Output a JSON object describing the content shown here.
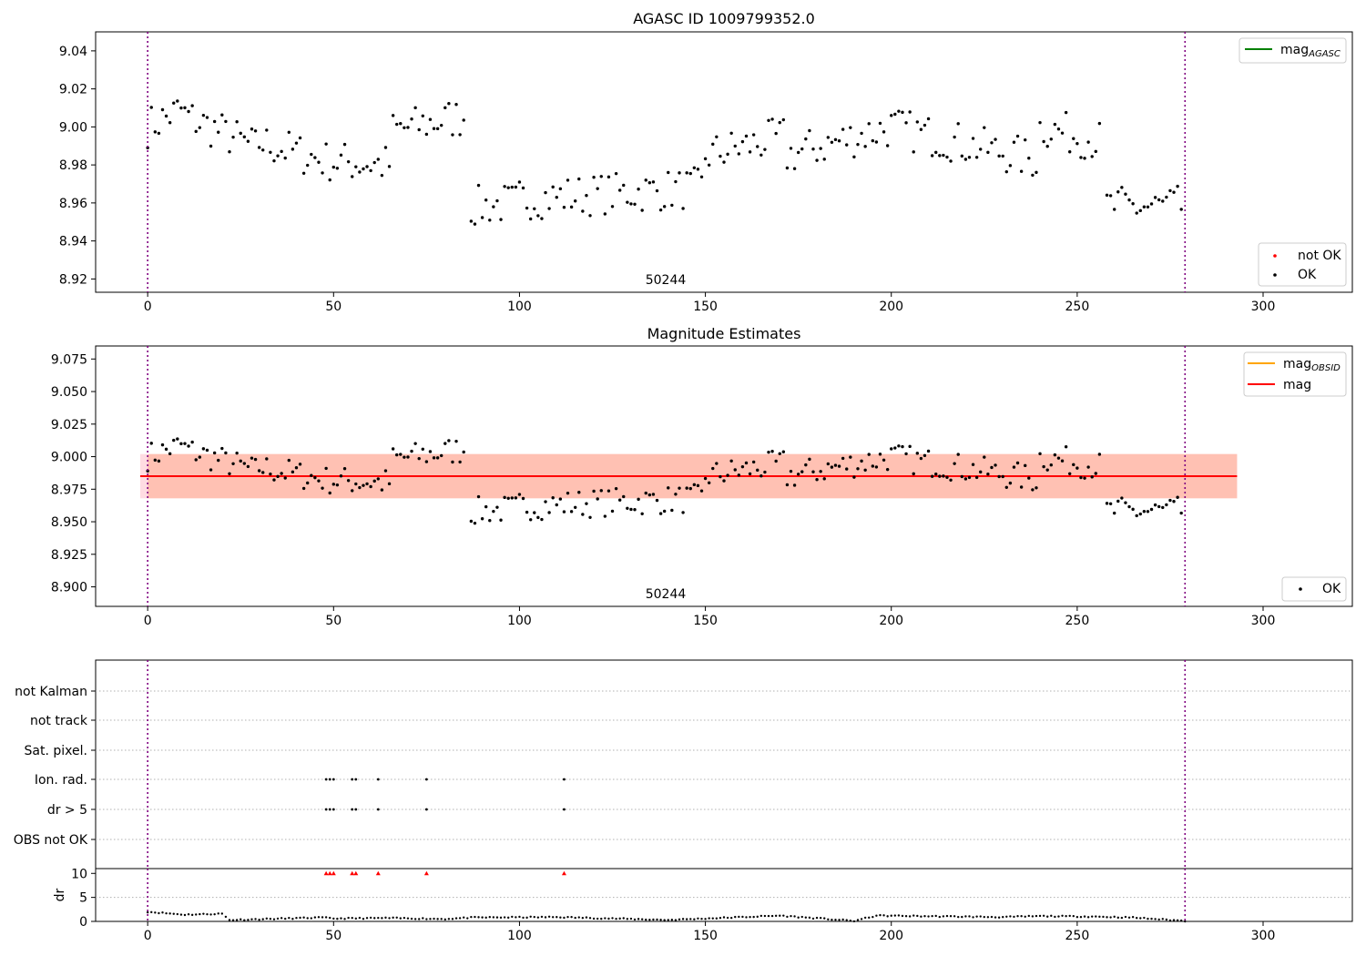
{
  "figure": {
    "title_top": "AGASC ID 1009799352.0",
    "title_mid": "Magnitude Estimates",
    "obsid_label_top": "50244",
    "obsid_label_mid": "50244"
  },
  "legends": {
    "top_upper": [
      {
        "label": "mag",
        "sub": "AGASC",
        "color": "#008000",
        "kind": "line"
      }
    ],
    "top_lower": [
      {
        "label": "not OK",
        "color": "#ff0000",
        "kind": "point"
      },
      {
        "label": "OK",
        "color": "#000000",
        "kind": "point"
      }
    ],
    "mid_upper": [
      {
        "label": "mag",
        "sub": "OBSID",
        "color": "#ffa500",
        "kind": "line"
      },
      {
        "label": "mag",
        "sub": "",
        "color": "#ff0000",
        "kind": "line"
      }
    ],
    "mid_lower": [
      {
        "label": "OK",
        "color": "#000000",
        "kind": "point"
      }
    ]
  },
  "colors": {
    "ok_point": "#000000",
    "not_ok_point": "#ff0000",
    "obs_boundary": "#800080",
    "mag_line": "#ff0000",
    "band_agasc": "#ffc0cb",
    "band_obsid": "#ffa07a",
    "flag_grid": "#b0b0b0"
  },
  "chart_data": [
    {
      "type": "scatter",
      "title": "AGASC ID 1009799352.0",
      "xlim": [
        -14,
        324
      ],
      "ylim": [
        8.913,
        9.05
      ],
      "xticks": [
        0,
        50,
        100,
        150,
        200,
        250,
        300
      ],
      "yticks": [
        8.92,
        8.94,
        8.96,
        8.98,
        9.0,
        9.02,
        9.04
      ],
      "yticklabels": [
        "8.92",
        "8.94",
        "8.96",
        "8.98",
        "9.00",
        "9.02",
        "9.04"
      ],
      "obs_boundaries": [
        0,
        279
      ],
      "segments": [
        {
          "x0": 0,
          "x1": 10,
          "y0": 9.0,
          "y1": 9.01
        },
        {
          "x0": 10,
          "x1": 30,
          "y0": 9.006,
          "y1": 8.988
        },
        {
          "x0": 30,
          "x1": 48,
          "y0": 8.992,
          "y1": 8.982
        },
        {
          "x0": 48,
          "x1": 66,
          "y0": 8.982,
          "y1": 8.98
        },
        {
          "x0": 66,
          "x1": 86,
          "y0": 8.998,
          "y1": 9.006
        },
        {
          "x0": 87,
          "x1": 100,
          "y0": 8.958,
          "y1": 8.96
        },
        {
          "x0": 100,
          "x1": 150,
          "y0": 8.962,
          "y1": 8.968
        },
        {
          "x0": 150,
          "x1": 172,
          "y0": 8.985,
          "y1": 8.995
        },
        {
          "x0": 172,
          "x1": 200,
          "y0": 8.985,
          "y1": 9.0
        },
        {
          "x0": 200,
          "x1": 240,
          "y0": 9.0,
          "y1": 8.982
        },
        {
          "x0": 240,
          "x1": 257,
          "y0": 9.0,
          "y1": 8.992
        },
        {
          "x0": 258,
          "x1": 279,
          "y0": 8.958,
          "y1": 8.958
        }
      ],
      "noise": 0.011,
      "seed": 7,
      "series": [
        {
          "name": "OK",
          "color": "#000000"
        }
      ],
      "legend": "top-right / bottom-right"
    },
    {
      "type": "scatter",
      "title": "Magnitude Estimates",
      "xlim": [
        -14,
        324
      ],
      "ylim": [
        8.885,
        9.085
      ],
      "xticks": [
        0,
        50,
        100,
        150,
        200,
        250,
        300
      ],
      "yticks": [
        8.9,
        8.925,
        8.95,
        8.975,
        9.0,
        9.025,
        9.05,
        9.075
      ],
      "yticklabels": [
        "8.900",
        "8.925",
        "8.950",
        "8.975",
        "9.000",
        "9.025",
        "9.050",
        "9.075"
      ],
      "obs_boundaries": [
        0,
        279
      ],
      "mag": 8.985,
      "band_agasc": [
        8.968,
        9.002
      ],
      "band_obsid": [
        8.968,
        9.002
      ],
      "band_xrange": [
        -2,
        293
      ],
      "series": [
        {
          "name": "OK",
          "color": "#000000"
        }
      ],
      "legend": "top-right / bottom-right"
    },
    {
      "type": "scatter",
      "categories": [
        "not Kalman",
        "not track",
        "Sat. pixel.",
        "Ion. rad.",
        "dr > 5",
        "OBS not OK"
      ],
      "flag_points": {
        "Ion. rad.": [
          48,
          49,
          50,
          55,
          56,
          62,
          75,
          112
        ],
        "dr > 5": [
          48,
          49,
          50,
          55,
          56,
          62,
          75,
          112
        ]
      },
      "obs_boundaries": [
        0,
        279
      ],
      "xlim": [
        -14,
        324
      ]
    },
    {
      "type": "scatter",
      "ylabel": "dr",
      "xlim": [
        -14,
        324
      ],
      "ylim": [
        0,
        11
      ],
      "xticks": [
        0,
        50,
        100,
        150,
        200,
        250,
        300
      ],
      "yticks": [
        0,
        5,
        10
      ],
      "yticklabels": [
        "0",
        "5",
        "10"
      ],
      "clipped_points_x": [
        48,
        49,
        50,
        55,
        56,
        62,
        75,
        112
      ],
      "clip_value": 10,
      "dr_profile": [
        [
          0,
          2.0
        ],
        [
          10,
          1.4
        ],
        [
          20,
          1.6
        ],
        [
          22,
          0.3
        ],
        [
          47,
          0.8
        ],
        [
          50,
          0.6
        ],
        [
          65,
          0.7
        ],
        [
          80,
          0.5
        ],
        [
          87,
          0.8
        ],
        [
          110,
          0.9
        ],
        [
          140,
          0.3
        ],
        [
          170,
          1.2
        ],
        [
          190,
          0.1
        ],
        [
          196,
          1.2
        ],
        [
          230,
          0.9
        ],
        [
          240,
          1.1
        ],
        [
          255,
          1.0
        ],
        [
          265,
          0.8
        ],
        [
          279,
          0.1
        ]
      ],
      "obs_boundaries": [
        0,
        279
      ]
    }
  ]
}
